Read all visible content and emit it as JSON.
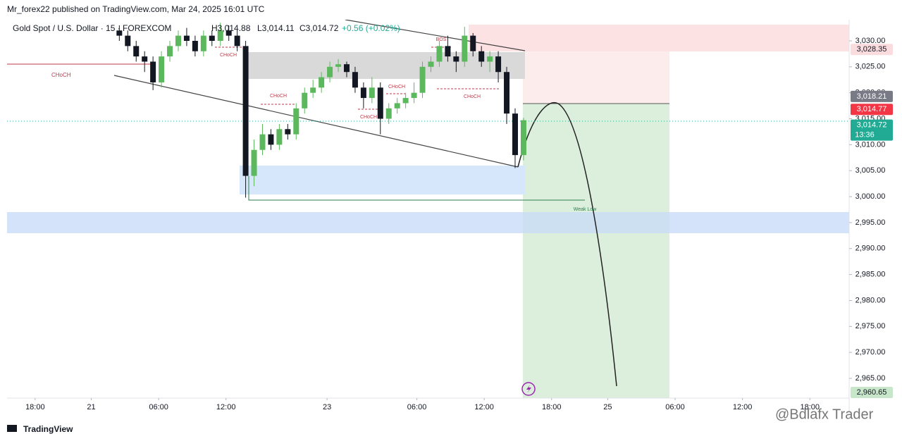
{
  "header": {
    "published": "Mr_forex22 published on TradingView.com, Mar 24, 2025 16:01 UTC",
    "symbol": "Gold Spot / U.S. Dollar · 15 · FOREXCOM",
    "ohlc": [
      "H3,014.88",
      "L3,014.11",
      "C3,014.72",
      "+0.56 (+0.02%)"
    ]
  },
  "annotations": {
    "choch": "CHoCH",
    "bos": "BOS",
    "weak_low": "Weak Low"
  },
  "footer": {
    "brand": "TradingView",
    "watermark": "@Bdlafx Trader"
  },
  "chart_data": {
    "type": "candlestick",
    "up_color": "#5cb85c",
    "down_color": "#131722",
    "x": [
      7.5,
      8.25,
      9,
      9.75,
      10.5,
      11.25,
      12,
      12.75,
      13.5,
      14.25,
      15,
      15.75,
      16.5,
      17.25,
      18,
      18.75,
      19.5,
      20.25,
      21,
      21.75,
      22.5,
      23.25,
      24,
      24.75,
      25.5,
      26.25,
      27,
      27.75,
      28.5,
      29.25,
      30,
      30.75,
      31.5,
      32.25,
      33,
      33.75,
      34.5,
      35.25,
      36,
      36.75,
      37.5,
      38.25,
      39,
      39.75,
      40.5,
      41.25,
      42,
      42.75,
      43.5
    ],
    "open": [
      3032,
      3031,
      3029,
      3027,
      3026,
      3022,
      3027,
      3029,
      3031,
      3030,
      3028,
      3031,
      3030,
      3032,
      3031,
      3029,
      3004,
      3009,
      3012,
      3010,
      3013,
      3012,
      3017,
      3020,
      3021,
      3023,
      3025,
      3025.5,
      3024,
      3021,
      3019,
      3021,
      3015,
      3017,
      3018,
      3019,
      3020,
      3025,
      3026,
      3029,
      3027,
      3026,
      3031,
      3028,
      3026,
      3027,
      3024,
      3016,
      3008
    ],
    "high": [
      3033,
      3032,
      3030,
      3028,
      3027,
      3028,
      3030,
      3032,
      3032.5,
      3031,
      3032,
      3032,
      3033.5,
      3033,
      3032,
      3030,
      3011,
      3014,
      3013,
      3014,
      3014,
      3018,
      3021,
      3022.5,
      3024,
      3026,
      3026.5,
      3026,
      3025,
      3022,
      3023,
      3022,
      3018,
      3019,
      3020,
      3022,
      3026,
      3027,
      3030,
      3031,
      3028,
      3032.7,
      3031.5,
      3029,
      3028,
      3028,
      3025,
      3017,
      3015.2
    ],
    "low": [
      3030,
      3028,
      3026,
      3024,
      3020.5,
      3021,
      3026,
      3028,
      3029,
      3027,
      3027,
      3029,
      3029,
      3030,
      3028,
      2999.8,
      3002,
      3008,
      3009,
      3009,
      3011,
      3011,
      3016,
      3019,
      3020,
      3022,
      3024,
      3023,
      3020,
      3017,
      3018,
      3012,
      3014,
      3016,
      3017,
      3018,
      3019,
      3024,
      3025,
      3026,
      3024,
      3025,
      3027,
      3025,
      3024,
      3022,
      3014,
      3005.5,
      3007
    ],
    "close": [
      3031,
      3029,
      3027,
      3026,
      3022,
      3027,
      3029,
      3031,
      3030,
      3028,
      3031,
      3030,
      3032,
      3031,
      3029,
      3004,
      3009,
      3012,
      3010,
      3013,
      3012,
      3017,
      3020,
      3021,
      3023,
      3025,
      3025.5,
      3024,
      3021,
      3019,
      3021,
      3015,
      3017,
      3018,
      3019,
      3020,
      3025,
      3026,
      3029,
      3027,
      3026,
      3031,
      3028,
      3026,
      3027,
      3024,
      3016,
      3008,
      3014.72
    ],
    "xlim": [
      -2.5,
      72.5
    ],
    "xticks": [
      {
        "value": 0,
        "label": "18:00"
      },
      {
        "value": 5,
        "label": "21"
      },
      {
        "value": 11,
        "label": "06:00"
      },
      {
        "value": 17,
        "label": "12:00"
      },
      {
        "value": 26,
        "label": "23"
      },
      {
        "value": 34,
        "label": "06:00"
      },
      {
        "value": 40,
        "label": "12:00"
      },
      {
        "value": 46,
        "label": "18:00"
      },
      {
        "value": 51,
        "label": "25"
      },
      {
        "value": 57,
        "label": "06:00"
      },
      {
        "value": 63,
        "label": "12:00"
      },
      {
        "value": 69,
        "label": "18:00"
      }
    ],
    "ylim": [
      2961.2,
      3034.07
    ],
    "yticks": [
      {
        "value": 3030,
        "label": "3,030.00"
      },
      {
        "value": 3025,
        "label": "3,025.00"
      },
      {
        "value": 3020,
        "label": "3,020.00"
      },
      {
        "value": 3015,
        "label": "3,015.00"
      },
      {
        "value": 3010,
        "label": "3,010.00"
      },
      {
        "value": 3005,
        "label": "3,005.00"
      },
      {
        "value": 3000,
        "label": "3,000.00"
      },
      {
        "value": 2995,
        "label": "2,995.00"
      },
      {
        "value": 2990,
        "label": "2,990.00"
      },
      {
        "value": 2985,
        "label": "2,985.00"
      },
      {
        "value": 2980,
        "label": "2,980.00"
      },
      {
        "value": 2975,
        "label": "2,975.00"
      },
      {
        "value": 2970,
        "label": "2,970.00"
      },
      {
        "value": 2965,
        "label": "2,965.00"
      }
    ],
    "price_labels": [
      {
        "value": 3028.35,
        "label": "3,028.35",
        "color": "#fbdcde",
        "text_color": "#131722"
      },
      {
        "value": 3018.21,
        "label": "3,018.21",
        "color": "#787b86",
        "text_color": "#ffffff"
      },
      {
        "value": 3014.77,
        "label": "3,014.77",
        "color": "#f23645",
        "text_color": "#ffffff"
      },
      {
        "value": 3014.72,
        "label": "3,014.72",
        "countdown": "13:36",
        "color": "#22ab94",
        "text_color": "#ffffff"
      },
      {
        "value": 2960.65,
        "label": "2,960.65",
        "color": "#c8e6c9",
        "text_color": "#131722"
      }
    ],
    "grid": false
  }
}
